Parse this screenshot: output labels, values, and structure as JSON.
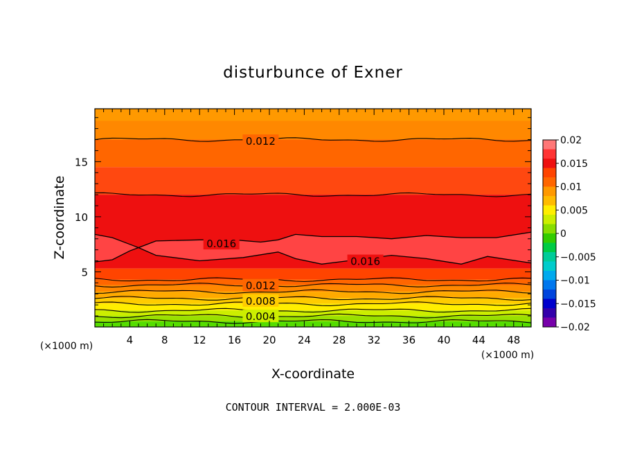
{
  "chart_data": {
    "type": "contour",
    "title": "disturbunce of Exner",
    "xlabel": "X-coordinate",
    "ylabel": "Z-coordinate",
    "x_unit": "(×1000 m)",
    "z_unit": "(×1000 m)",
    "xlim": [
      0,
      50
    ],
    "ylim": [
      0,
      19.8
    ],
    "x_ticks": [
      4,
      8,
      12,
      16,
      20,
      24,
      28,
      32,
      36,
      40,
      44,
      48
    ],
    "x_tick_labels": [
      "4",
      "8",
      "12",
      "16",
      "20",
      "24",
      "28",
      "32",
      "36",
      "40",
      "44",
      "48"
    ],
    "y_ticks": [
      5,
      10,
      15
    ],
    "y_tick_labels": [
      "5",
      "10",
      "15"
    ],
    "footer": "CONTOUR INTERVAL = 2.000E-03",
    "contour_interval": 0.002,
    "contour_labels": [
      {
        "text": "0.012",
        "x": 19,
        "z": 16.9
      },
      {
        "text": "0.016",
        "x": 14.5,
        "z": 7.6
      },
      {
        "text": "0.016",
        "x": 31,
        "z": 6.0
      },
      {
        "text": "0.012",
        "x": 19,
        "z": 3.8
      },
      {
        "text": "0.008",
        "x": 19,
        "z": 2.4
      },
      {
        "text": "0.004",
        "x": 19,
        "z": 1.0
      }
    ],
    "bands_from_top": [
      {
        "z_top": 19.8,
        "z_bottom": 18.7,
        "color": "#ff9900"
      },
      {
        "z_top": 18.7,
        "z_bottom": 17.0,
        "color": "#ff8800"
      },
      {
        "z_top": 17.0,
        "z_bottom": 14.5,
        "color": "#ff6600"
      },
      {
        "z_top": 14.5,
        "z_bottom": 12.0,
        "color": "#ff4810"
      },
      {
        "z_top": 12.0,
        "z_bottom": 5.3,
        "color": "#ee1010"
      },
      {
        "z_top": 5.3,
        "z_bottom": 4.3,
        "color": "#ff4400"
      },
      {
        "z_top": 4.3,
        "z_bottom": 3.8,
        "color": "#ff6600"
      },
      {
        "z_top": 3.8,
        "z_bottom": 3.2,
        "color": "#ff8800"
      },
      {
        "z_top": 3.2,
        "z_bottom": 2.6,
        "color": "#ffaa00"
      },
      {
        "z_top": 2.6,
        "z_bottom": 2.1,
        "color": "#ffcc00"
      },
      {
        "z_top": 2.1,
        "z_bottom": 1.5,
        "color": "#ffee00"
      },
      {
        "z_top": 1.5,
        "z_bottom": 1.0,
        "color": "#ccee00"
      },
      {
        "z_top": 1.0,
        "z_bottom": 0.5,
        "color": "#99e000"
      },
      {
        "z_top": 0.5,
        "z_bottom": 0.0,
        "color": "#55dd00"
      }
    ],
    "contour_lines_z": [
      17.0,
      12.0,
      4.3,
      3.8,
      3.2,
      2.6,
      2.1,
      1.5,
      1.0,
      0.5
    ],
    "max_region_upper": [
      [
        0,
        8.4
      ],
      [
        2,
        8.1
      ],
      [
        4,
        7.5
      ],
      [
        5,
        7.2
      ],
      [
        7,
        7.8
      ],
      [
        12,
        7.9
      ],
      [
        16,
        7.9
      ],
      [
        19,
        7.7
      ],
      [
        21,
        7.9
      ],
      [
        23,
        8.4
      ],
      [
        26,
        8.2
      ],
      [
        30,
        8.2
      ],
      [
        34,
        8.0
      ],
      [
        38,
        8.3
      ],
      [
        42,
        8.1
      ],
      [
        46,
        8.1
      ],
      [
        50,
        8.6
      ]
    ],
    "max_region_lower": [
      [
        0,
        5.9
      ],
      [
        2,
        6.1
      ],
      [
        4,
        6.9
      ],
      [
        5,
        7.2
      ],
      [
        7,
        6.5
      ],
      [
        12,
        6.0
      ],
      [
        17,
        6.3
      ],
      [
        21,
        6.8
      ],
      [
        23,
        6.2
      ],
      [
        26,
        5.7
      ],
      [
        30,
        6.1
      ],
      [
        34,
        6.5
      ],
      [
        38,
        6.2
      ],
      [
        42,
        5.7
      ],
      [
        45,
        6.4
      ],
      [
        50,
        5.8
      ]
    ],
    "colorbar": {
      "levels": [
        "0.02",
        "0.015",
        "0.01",
        "0.005",
        "0",
        "−0.005",
        "−0.01",
        "−0.015",
        "−0.02"
      ],
      "colors_top_to_bottom": [
        "#ff7777",
        "#ff3333",
        "#ee1010",
        "#ff4400",
        "#ff6600",
        "#ff9900",
        "#ffbb00",
        "#ffee00",
        "#ccee00",
        "#88dd00",
        "#33cc00",
        "#00cc44",
        "#00cc99",
        "#00cccc",
        "#00aaee",
        "#0077ee",
        "#0044dd",
        "#0000cc",
        "#3300aa",
        "#7700aa"
      ]
    }
  }
}
